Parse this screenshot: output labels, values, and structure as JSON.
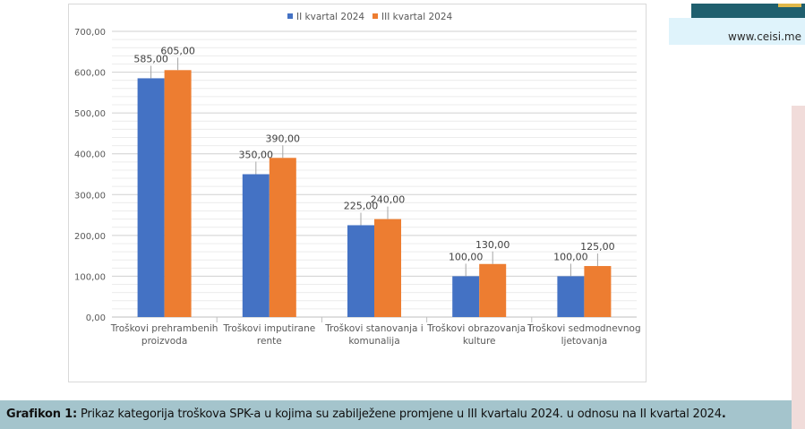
{
  "header": {
    "site": "www.ceisi.me"
  },
  "caption": {
    "label": "Grafikon 1:",
    "text": " Prikaz kategorija troškova SPK-a u kojima su zabilježene promjene u III kvartalu 2024. u odnosu na II kvartal 2024",
    "end": "."
  },
  "colors": {
    "series1": "#4472c4",
    "series2": "#ed7d31",
    "grid": "#d9d9d9",
    "text": "#595959"
  },
  "chart_data": {
    "type": "bar",
    "title": "",
    "xlabel": "",
    "ylabel": "",
    "ylim": [
      0,
      700
    ],
    "yticks": [
      "0,00",
      "100,00",
      "200,00",
      "300,00",
      "400,00",
      "500,00",
      "600,00",
      "700,00"
    ],
    "legend": "top",
    "grid": true,
    "categories": [
      [
        "Troškovi prehrambenih",
        "proizvoda"
      ],
      [
        "Troškovi imputirane",
        "rente"
      ],
      [
        "Troškovi stanovanja i",
        "komunalija"
      ],
      [
        "Troškovi obrazovanja i",
        "kulture"
      ],
      [
        "Troškovi sedmodnevnog",
        "ljetovanja"
      ]
    ],
    "series": [
      {
        "name": "II kvartal 2024",
        "values": [
          585,
          350,
          225,
          100,
          100
        ],
        "labels": [
          "585,00",
          "350,00",
          "225,00",
          "100,00",
          "100,00"
        ]
      },
      {
        "name": "III kvartal 2024",
        "values": [
          605,
          390,
          240,
          130,
          125
        ],
        "labels": [
          "605,00",
          "390,00",
          "240,00",
          "130,00",
          "125,00"
        ]
      }
    ]
  }
}
